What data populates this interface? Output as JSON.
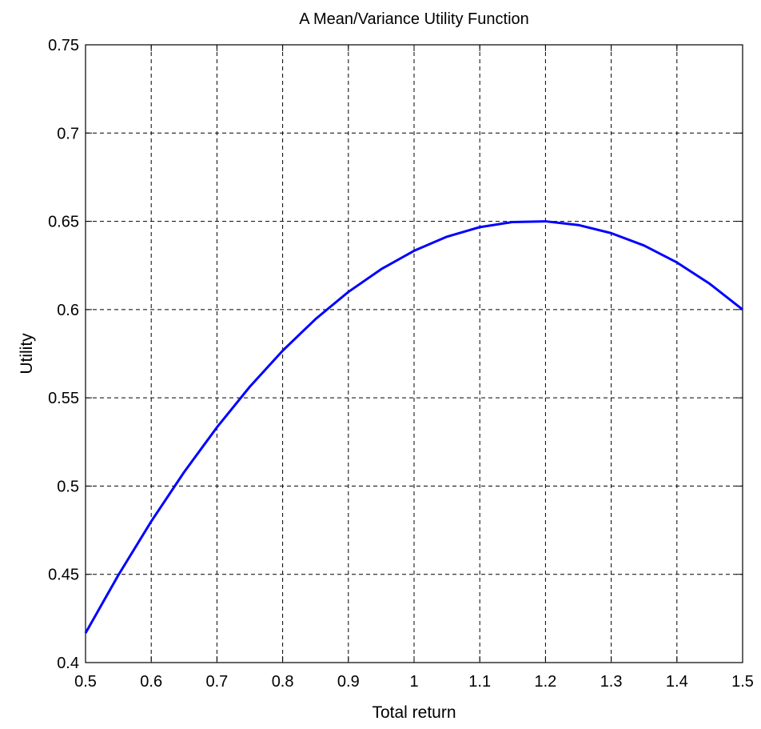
{
  "chart_data": {
    "type": "line",
    "title": "A Mean/Variance Utility Function",
    "xlabel": "Total return",
    "ylabel": "Utility",
    "xlim": [
      0.5,
      1.5
    ],
    "ylim": [
      0.4,
      0.75
    ],
    "xticks": [
      0.5,
      0.6,
      0.7,
      0.8,
      0.9,
      1.0,
      1.1,
      1.2,
      1.3,
      1.4,
      1.5
    ],
    "xtick_labels": [
      "0.5",
      "0.6",
      "0.7",
      "0.8",
      "0.9",
      "1",
      "1.1",
      "1.2",
      "1.3",
      "1.4",
      "1.5"
    ],
    "yticks": [
      0.4,
      0.45,
      0.5,
      0.55,
      0.6,
      0.65,
      0.7,
      0.75
    ],
    "ytick_labels": [
      "0.4",
      "0.45",
      "0.5",
      "0.55",
      "0.6",
      "0.65",
      "0.7",
      "0.75"
    ],
    "grid": true,
    "series": [
      {
        "color": "#0000ff",
        "x": [
          0.5,
          0.55,
          0.6,
          0.65,
          0.7,
          0.75,
          0.8,
          0.85,
          0.9,
          0.95,
          1.0,
          1.05,
          1.1,
          1.15,
          1.2,
          1.25,
          1.3,
          1.35,
          1.4,
          1.45,
          1.5
        ],
        "y": [
          0.4167,
          0.4496,
          0.48,
          0.5079,
          0.5333,
          0.5563,
          0.5767,
          0.5946,
          0.61,
          0.6229,
          0.6333,
          0.6413,
          0.6467,
          0.6496,
          0.65,
          0.6479,
          0.6433,
          0.6363,
          0.6267,
          0.6146,
          0.6
        ]
      }
    ]
  }
}
